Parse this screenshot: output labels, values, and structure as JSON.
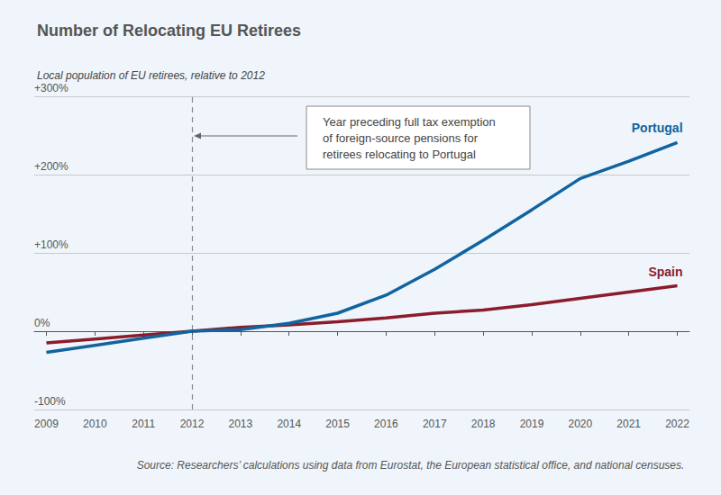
{
  "chart_data": {
    "type": "line",
    "title": "Number of Relocating EU Retirees",
    "y_label": "Local population of EU retirees, relative to 2012",
    "source": "Source: Researchers’ calculations using data from Eurostat, the European statistical office, and national censuses.",
    "x": [
      2009,
      2010,
      2011,
      2012,
      2013,
      2014,
      2015,
      2016,
      2017,
      2018,
      2019,
      2020,
      2021,
      2022
    ],
    "xlim": [
      2008.75,
      2022.25
    ],
    "xticks": [
      2009,
      2010,
      2011,
      2012,
      2013,
      2014,
      2015,
      2016,
      2017,
      2018,
      2019,
      2020,
      2021,
      2022
    ],
    "ylim": [
      -100,
      300
    ],
    "yticks": [
      {
        "value": -100,
        "label": "-100%"
      },
      {
        "value": 0,
        "label": "0%"
      },
      {
        "value": 100,
        "label": "+100%"
      },
      {
        "value": 200,
        "label": "+200%"
      },
      {
        "value": 300,
        "label": "+300%"
      }
    ],
    "grid": true,
    "series": [
      {
        "name": "Portugal",
        "color": "#11649f",
        "values": [
          -27,
          -18,
          -9,
          0,
          2,
          10,
          23,
          46,
          79,
          116,
          155,
          195,
          217,
          241
        ]
      },
      {
        "name": "Spain",
        "color": "#8b1c2c",
        "values": [
          -15,
          -10,
          -5,
          0,
          5,
          8,
          12,
          17,
          23,
          27,
          34,
          42,
          50,
          58
        ]
      }
    ],
    "annotations": [
      {
        "x": 2012,
        "text": "Year preceding full tax exemption\nof foreign-source pensions for\nretirees relocating to Portugal"
      }
    ]
  }
}
